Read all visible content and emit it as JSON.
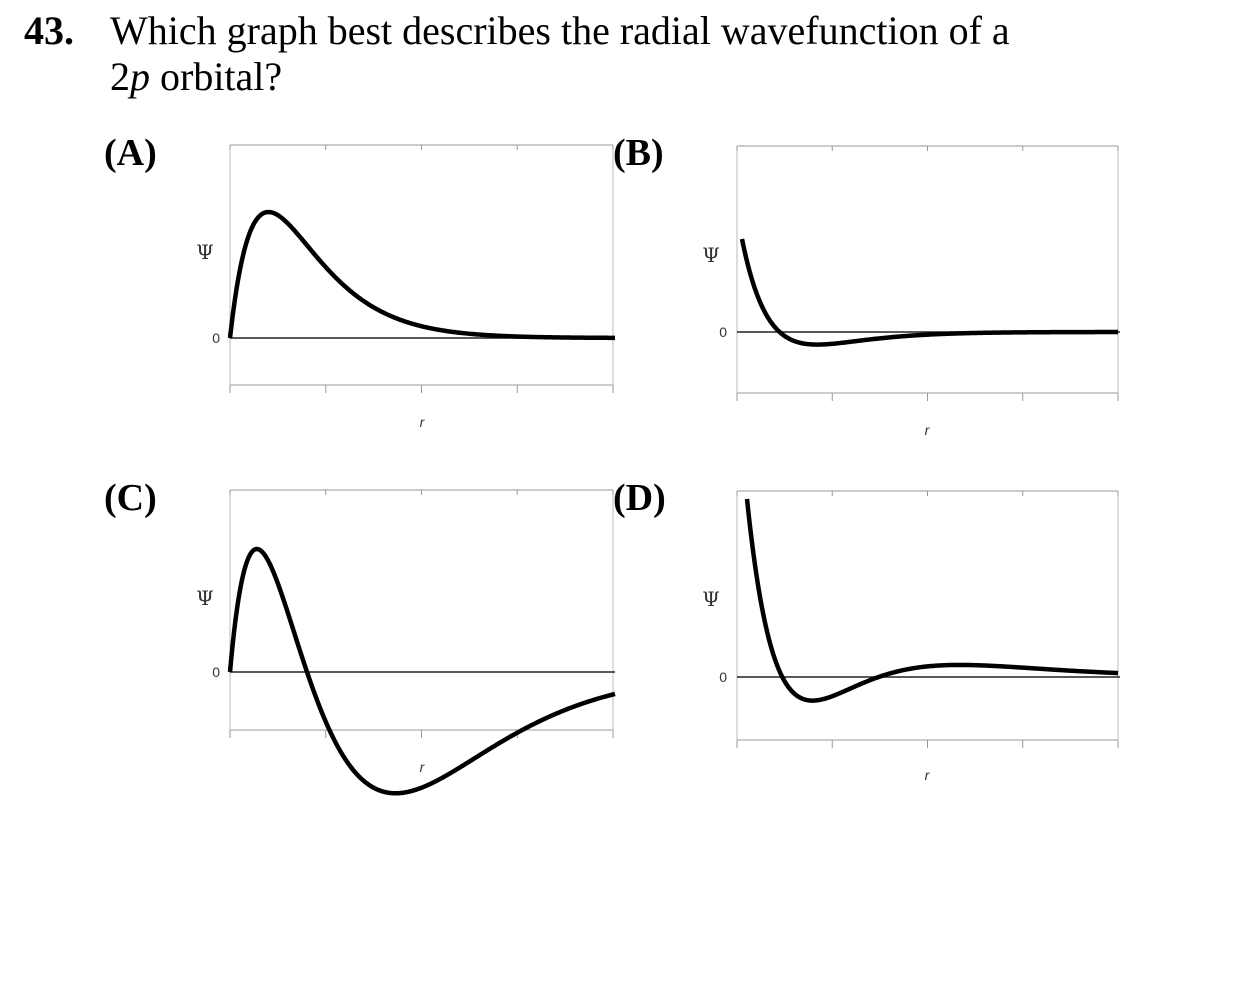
{
  "question": {
    "number": "43.",
    "text_line1": "Which graph best describes the radial wavefunction of a",
    "text_line2_prefix": "2",
    "text_line2_italic": "p",
    "text_line2_suffix": " orbital?"
  },
  "chart_data": [
    {
      "type": "line",
      "option": "(A)",
      "ylabel": "Ψ",
      "xlabel": "r",
      "y_tick_label": "0",
      "x_ticks": 5,
      "series": [
        {
          "shape": "r·e^(-r/2)",
          "x_range": [
            0,
            20
          ],
          "sign_changes": 0,
          "starts_at_zero": true
        }
      ],
      "grid": false
    },
    {
      "type": "line",
      "option": "(B)",
      "ylabel": "Ψ",
      "xlabel": "r",
      "y_tick_label": "0",
      "x_ticks": 5,
      "series": [
        {
          "shape": "(2 - r)·e^(-r/2)",
          "x_range": [
            0,
            20
          ],
          "sign_changes": 1,
          "starts_at_zero": false
        }
      ],
      "grid": false
    },
    {
      "type": "line",
      "option": "(C)",
      "ylabel": "Ψ",
      "xlabel": "r",
      "y_tick_label": "0",
      "x_ticks": 5,
      "series": [
        {
          "shape": "r·(4 - r)·e^(-r/3)",
          "x_range": [
            0,
            20
          ],
          "sign_changes": 1,
          "starts_at_zero": true
        }
      ],
      "grid": false
    },
    {
      "type": "line",
      "option": "(D)",
      "ylabel": "Ψ",
      "xlabel": "r",
      "y_tick_label": "0",
      "x_ticks": 5,
      "series": [
        {
          "shape": "(27 - 18r + 2r²)·e^(-r/3)",
          "x_range": [
            0,
            20
          ],
          "sign_changes": 2,
          "starts_at_zero": false
        }
      ],
      "grid": false
    }
  ]
}
